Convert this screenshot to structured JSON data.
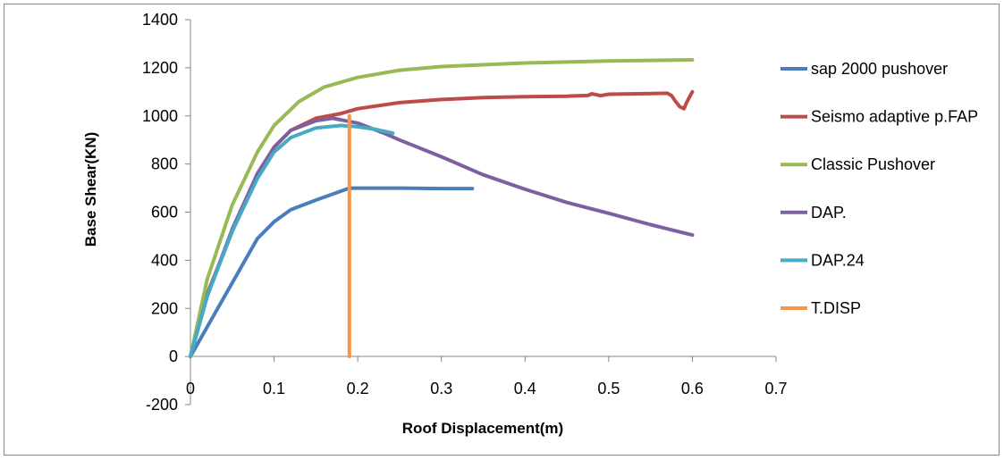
{
  "chart_data": {
    "type": "line",
    "title": "",
    "xlabel": "Roof Displacement(m)",
    "ylabel": "Base Shear(KN)",
    "xlim": [
      0,
      0.7
    ],
    "ylim": [
      -200,
      1400
    ],
    "x_ticks": [
      "0",
      "0.1",
      "0.2",
      "0.3",
      "0.4",
      "0.5",
      "0.6",
      "0.7"
    ],
    "y_ticks": [
      "-200",
      "0",
      "200",
      "400",
      "600",
      "800",
      "1000",
      "1200",
      "1400"
    ],
    "grid": false,
    "legend_position": "right",
    "series": [
      {
        "name": "sap 2000 pushover",
        "color": "#4a7ebb",
        "points": [
          [
            0,
            0
          ],
          [
            0.04,
            245
          ],
          [
            0.08,
            490
          ],
          [
            0.1,
            560
          ],
          [
            0.12,
            610
          ],
          [
            0.15,
            650
          ],
          [
            0.19,
            700
          ],
          [
            0.25,
            700
          ],
          [
            0.3,
            698
          ],
          [
            0.337,
            698
          ]
        ]
      },
      {
        "name": "Seismo adaptive p.FAP",
        "color": "#be4b48",
        "points": [
          [
            0,
            0
          ],
          [
            0.02,
            260
          ],
          [
            0.05,
            520
          ],
          [
            0.08,
            760
          ],
          [
            0.1,
            870
          ],
          [
            0.12,
            940
          ],
          [
            0.15,
            990
          ],
          [
            0.18,
            1010
          ],
          [
            0.2,
            1030
          ],
          [
            0.25,
            1055
          ],
          [
            0.3,
            1068
          ],
          [
            0.35,
            1076
          ],
          [
            0.4,
            1080
          ],
          [
            0.45,
            1082
          ],
          [
            0.475,
            1085
          ],
          [
            0.48,
            1092
          ],
          [
            0.49,
            1084
          ],
          [
            0.5,
            1090
          ],
          [
            0.55,
            1093
          ],
          [
            0.57,
            1094
          ],
          [
            0.575,
            1085
          ],
          [
            0.58,
            1060
          ],
          [
            0.585,
            1038
          ],
          [
            0.59,
            1030
          ],
          [
            0.593,
            1055
          ],
          [
            0.6,
            1100
          ]
        ]
      },
      {
        "name": "Classic Pushover",
        "color": "#98b954",
        "points": [
          [
            0,
            0
          ],
          [
            0.02,
            320
          ],
          [
            0.05,
            630
          ],
          [
            0.08,
            850
          ],
          [
            0.1,
            960
          ],
          [
            0.13,
            1060
          ],
          [
            0.16,
            1120
          ],
          [
            0.2,
            1160
          ],
          [
            0.25,
            1190
          ],
          [
            0.3,
            1205
          ],
          [
            0.4,
            1220
          ],
          [
            0.5,
            1228
          ],
          [
            0.6,
            1233
          ]
        ]
      },
      {
        "name": "DAP.",
        "color": "#7d60a0",
        "points": [
          [
            0,
            0
          ],
          [
            0.02,
            250
          ],
          [
            0.05,
            530
          ],
          [
            0.08,
            760
          ],
          [
            0.1,
            870
          ],
          [
            0.12,
            940
          ],
          [
            0.15,
            980
          ],
          [
            0.17,
            990
          ],
          [
            0.2,
            970
          ],
          [
            0.23,
            930
          ],
          [
            0.25,
            900
          ],
          [
            0.3,
            830
          ],
          [
            0.35,
            755
          ],
          [
            0.4,
            695
          ],
          [
            0.45,
            640
          ],
          [
            0.5,
            595
          ],
          [
            0.55,
            548
          ],
          [
            0.6,
            505
          ]
        ]
      },
      {
        "name": "DAP.24",
        "color": "#46aac4",
        "points": [
          [
            0,
            0
          ],
          [
            0.02,
            250
          ],
          [
            0.05,
            520
          ],
          [
            0.08,
            740
          ],
          [
            0.1,
            850
          ],
          [
            0.12,
            910
          ],
          [
            0.15,
            950
          ],
          [
            0.18,
            960
          ],
          [
            0.2,
            955
          ],
          [
            0.22,
            945
          ],
          [
            0.242,
            928
          ]
        ]
      },
      {
        "name": "T.DISP",
        "color": "#f79646",
        "points": [
          [
            0.19,
            1000
          ],
          [
            0.19,
            0
          ]
        ]
      }
    ]
  }
}
